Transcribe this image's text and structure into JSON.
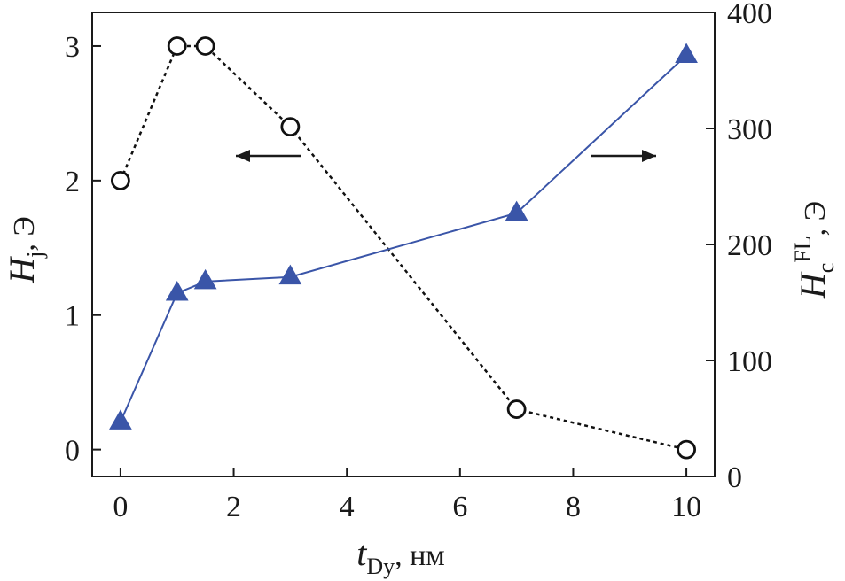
{
  "chart_data": {
    "type": "line",
    "x_axis": {
      "title_main": "t",
      "title_sub": "Dy",
      "title_unit": ", нм",
      "range": [
        -0.5,
        10.5
      ],
      "ticks": [
        0,
        2,
        4,
        6,
        8,
        10
      ],
      "tick_labels": [
        "0",
        "2",
        "4",
        "6",
        "8",
        "10"
      ]
    },
    "y_left": {
      "title_main": "H",
      "title_sub": "j",
      "title_unit": ", Э",
      "range": [
        -0.2,
        3.25
      ],
      "ticks": [
        0,
        1,
        2,
        3
      ],
      "tick_labels": [
        "0",
        "1",
        "2",
        "3"
      ]
    },
    "y_right": {
      "title_main": "H",
      "title_sub": "c",
      "title_sup": "FL",
      "title_unit": ", Э",
      "range": [
        0,
        400
      ],
      "ticks": [
        0,
        100,
        200,
        300,
        400
      ],
      "tick_labels": [
        "0",
        "100",
        "200",
        "300",
        "400"
      ]
    },
    "series": [
      {
        "axis": "left",
        "marker": "open-circle",
        "line_style": "dotted",
        "color": "#111111",
        "points": [
          [
            0,
            2.0
          ],
          [
            1,
            3.0
          ],
          [
            1.5,
            3.0
          ],
          [
            3,
            2.4
          ],
          [
            7,
            0.3
          ],
          [
            10,
            0.0
          ]
        ]
      },
      {
        "axis": "right",
        "marker": "filled-triangle",
        "line_style": "solid",
        "color": "#3a55a8",
        "points": [
          [
            0,
            47
          ],
          [
            1,
            158
          ],
          [
            1.5,
            168
          ],
          [
            3,
            172
          ],
          [
            7,
            227
          ],
          [
            10,
            363
          ]
        ]
      }
    ],
    "annotations": [
      {
        "type": "arrow",
        "direction": "left",
        "points_to": "y_left"
      },
      {
        "type": "arrow",
        "direction": "right",
        "points_to": "y_right"
      }
    ],
    "grid": false
  }
}
